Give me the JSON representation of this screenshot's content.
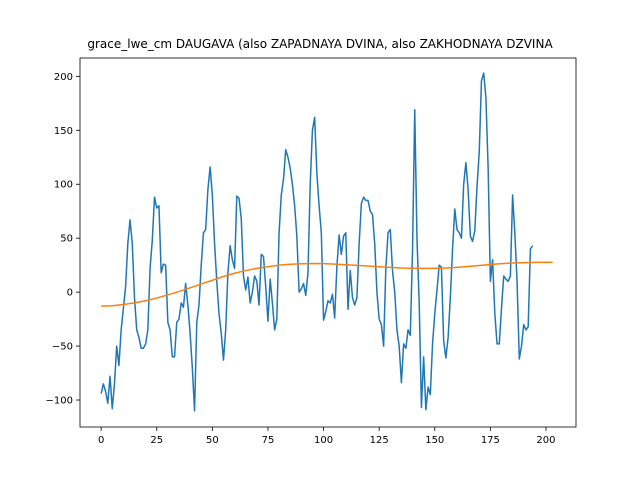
{
  "chart_data": {
    "type": "line",
    "title": "grace_lwe_cm DAUGAVA (also ZAPADNAYA DVINA, also ZAKHODNAYA DZVINA",
    "xlabel": "",
    "ylabel": "",
    "xlim": [
      -9.5,
      213.5
    ],
    "ylim": [
      -125,
      217
    ],
    "xticks": [
      0,
      25,
      50,
      75,
      100,
      125,
      150,
      175,
      200
    ],
    "yticks": [
      -100,
      -50,
      0,
      50,
      100,
      150,
      200
    ],
    "grid": false,
    "legend": "none",
    "series": [
      {
        "color": "#1f77b4",
        "points": [
          [
            0,
            -94
          ],
          [
            1,
            -85
          ],
          [
            2,
            -92
          ],
          [
            3,
            -103
          ],
          [
            4,
            -78
          ],
          [
            5,
            -108
          ],
          [
            6,
            -85
          ],
          [
            7,
            -50
          ],
          [
            8,
            -68
          ],
          [
            9,
            -35
          ],
          [
            10,
            -15
          ],
          [
            11,
            5
          ],
          [
            12,
            45
          ],
          [
            13,
            67
          ],
          [
            14,
            45
          ],
          [
            15,
            -5
          ],
          [
            16,
            -35
          ],
          [
            17,
            -42
          ],
          [
            18,
            -52
          ],
          [
            19,
            -52
          ],
          [
            20,
            -48
          ],
          [
            21,
            -35
          ],
          [
            22,
            22
          ],
          [
            23,
            48
          ],
          [
            24,
            88
          ],
          [
            25,
            78
          ],
          [
            26,
            80
          ],
          [
            27,
            18
          ],
          [
            28,
            26
          ],
          [
            29,
            25
          ],
          [
            30,
            -28
          ],
          [
            31,
            -35
          ],
          [
            32,
            -60
          ],
          [
            33,
            -60
          ],
          [
            34,
            -28
          ],
          [
            35,
            -25
          ],
          [
            36,
            -10
          ],
          [
            37,
            -14
          ],
          [
            38,
            8
          ],
          [
            39,
            -12
          ],
          [
            40,
            -38
          ],
          [
            41,
            -70
          ],
          [
            42,
            -110
          ],
          [
            43,
            -28
          ],
          [
            44,
            -12
          ],
          [
            45,
            25
          ],
          [
            46,
            55
          ],
          [
            47,
            58
          ],
          [
            48,
            95
          ],
          [
            49,
            116
          ],
          [
            50,
            90
          ],
          [
            51,
            45
          ],
          [
            52,
            10
          ],
          [
            53,
            -20
          ],
          [
            54,
            -38
          ],
          [
            55,
            -63
          ],
          [
            56,
            -35
          ],
          [
            57,
            18
          ],
          [
            58,
            43
          ],
          [
            59,
            30
          ],
          [
            60,
            22
          ],
          [
            61,
            89
          ],
          [
            62,
            87
          ],
          [
            63,
            68
          ],
          [
            64,
            15
          ],
          [
            65,
            2
          ],
          [
            66,
            14
          ],
          [
            67,
            -10
          ],
          [
            68,
            0
          ],
          [
            69,
            15
          ],
          [
            70,
            10
          ],
          [
            71,
            -12
          ],
          [
            72,
            35
          ],
          [
            73,
            33
          ],
          [
            74,
            5
          ],
          [
            75,
            -27
          ],
          [
            76,
            12
          ],
          [
            77,
            -10
          ],
          [
            78,
            -35
          ],
          [
            79,
            -25
          ],
          [
            80,
            55
          ],
          [
            81,
            90
          ],
          [
            82,
            105
          ],
          [
            83,
            132
          ],
          [
            84,
            125
          ],
          [
            85,
            115
          ],
          [
            86,
            100
          ],
          [
            87,
            80
          ],
          [
            88,
            52
          ],
          [
            89,
            0
          ],
          [
            90,
            3
          ],
          [
            91,
            8
          ],
          [
            92,
            -3
          ],
          [
            93,
            18
          ],
          [
            94,
            100
          ],
          [
            95,
            150
          ],
          [
            96,
            162
          ],
          [
            97,
            110
          ],
          [
            98,
            80
          ],
          [
            99,
            55
          ],
          [
            100,
            -26
          ],
          [
            101,
            -18
          ],
          [
            102,
            -8
          ],
          [
            103,
            -10
          ],
          [
            104,
            -2
          ],
          [
            105,
            -24
          ],
          [
            106,
            24
          ],
          [
            107,
            53
          ],
          [
            108,
            35
          ],
          [
            109,
            52
          ],
          [
            110,
            55
          ],
          [
            111,
            -16
          ],
          [
            112,
            20
          ],
          [
            113,
            -5
          ],
          [
            114,
            -12
          ],
          [
            115,
            -5
          ],
          [
            116,
            45
          ],
          [
            117,
            82
          ],
          [
            118,
            88
          ],
          [
            119,
            85
          ],
          [
            120,
            85
          ],
          [
            121,
            75
          ],
          [
            122,
            72
          ],
          [
            123,
            45
          ],
          [
            124,
            0
          ],
          [
            125,
            -25
          ],
          [
            126,
            -30
          ],
          [
            127,
            -50
          ],
          [
            128,
            22
          ],
          [
            129,
            55
          ],
          [
            130,
            58
          ],
          [
            131,
            20
          ],
          [
            132,
            0
          ],
          [
            133,
            -35
          ],
          [
            134,
            -50
          ],
          [
            135,
            -84
          ],
          [
            136,
            -48
          ],
          [
            137,
            -52
          ],
          [
            138,
            -35
          ],
          [
            139,
            -40
          ],
          [
            140,
            38
          ],
          [
            141,
            169
          ],
          [
            142,
            50
          ],
          [
            143,
            -10
          ],
          [
            144,
            -107
          ],
          [
            145,
            -60
          ],
          [
            146,
            -109
          ],
          [
            147,
            -88
          ],
          [
            148,
            -95
          ],
          [
            149,
            -48
          ],
          [
            150,
            -20
          ],
          [
            151,
            2
          ],
          [
            152,
            25
          ],
          [
            153,
            23
          ],
          [
            154,
            -45
          ],
          [
            155,
            -61
          ],
          [
            156,
            -42
          ],
          [
            157,
            -5
          ],
          [
            158,
            40
          ],
          [
            159,
            77
          ],
          [
            160,
            58
          ],
          [
            161,
            55
          ],
          [
            162,
            50
          ],
          [
            163,
            100
          ],
          [
            164,
            120
          ],
          [
            165,
            95
          ],
          [
            166,
            52
          ],
          [
            167,
            47
          ],
          [
            168,
            57
          ],
          [
            169,
            98
          ],
          [
            170,
            130
          ],
          [
            171,
            196
          ],
          [
            172,
            203
          ],
          [
            173,
            180
          ],
          [
            174,
            115
          ],
          [
            175,
            10
          ],
          [
            176,
            30
          ],
          [
            177,
            -20
          ],
          [
            178,
            -48
          ],
          [
            179,
            -48
          ],
          [
            180,
            -15
          ],
          [
            181,
            15
          ],
          [
            182,
            12
          ],
          [
            183,
            10
          ],
          [
            184,
            15
          ],
          [
            185,
            90
          ],
          [
            186,
            55
          ],
          [
            187,
            10
          ],
          [
            188,
            -62
          ],
          [
            189,
            -50
          ],
          [
            190,
            -30
          ],
          [
            191,
            -35
          ],
          [
            192,
            -32
          ],
          [
            193,
            40
          ],
          [
            194,
            43
          ]
        ]
      },
      {
        "color": "#ff7f0e",
        "points": [
          [
            0,
            -13
          ],
          [
            5,
            -12.6
          ],
          [
            10,
            -11.5
          ],
          [
            15,
            -10
          ],
          [
            20,
            -8
          ],
          [
            25,
            -5.5
          ],
          [
            30,
            -2.5
          ],
          [
            35,
            0.5
          ],
          [
            40,
            4
          ],
          [
            45,
            7.5
          ],
          [
            50,
            11
          ],
          [
            55,
            14.5
          ],
          [
            60,
            17.5
          ],
          [
            65,
            20
          ],
          [
            70,
            22
          ],
          [
            75,
            23.6
          ],
          [
            80,
            25
          ],
          [
            85,
            25.8
          ],
          [
            90,
            26.3
          ],
          [
            95,
            26.5
          ],
          [
            100,
            26.4
          ],
          [
            105,
            26
          ],
          [
            110,
            25.4
          ],
          [
            115,
            24.8
          ],
          [
            120,
            24.2
          ],
          [
            125,
            23.5
          ],
          [
            130,
            22.9
          ],
          [
            135,
            22.4
          ],
          [
            140,
            22.1
          ],
          [
            145,
            22
          ],
          [
            150,
            22.1
          ],
          [
            155,
            22.4
          ],
          [
            160,
            23
          ],
          [
            165,
            23.8
          ],
          [
            170,
            24.7
          ],
          [
            175,
            25.6
          ],
          [
            180,
            26.4
          ],
          [
            185,
            27
          ],
          [
            190,
            27.4
          ],
          [
            195,
            27.6
          ],
          [
            200,
            27.7
          ],
          [
            203,
            27.7
          ]
        ]
      }
    ]
  }
}
